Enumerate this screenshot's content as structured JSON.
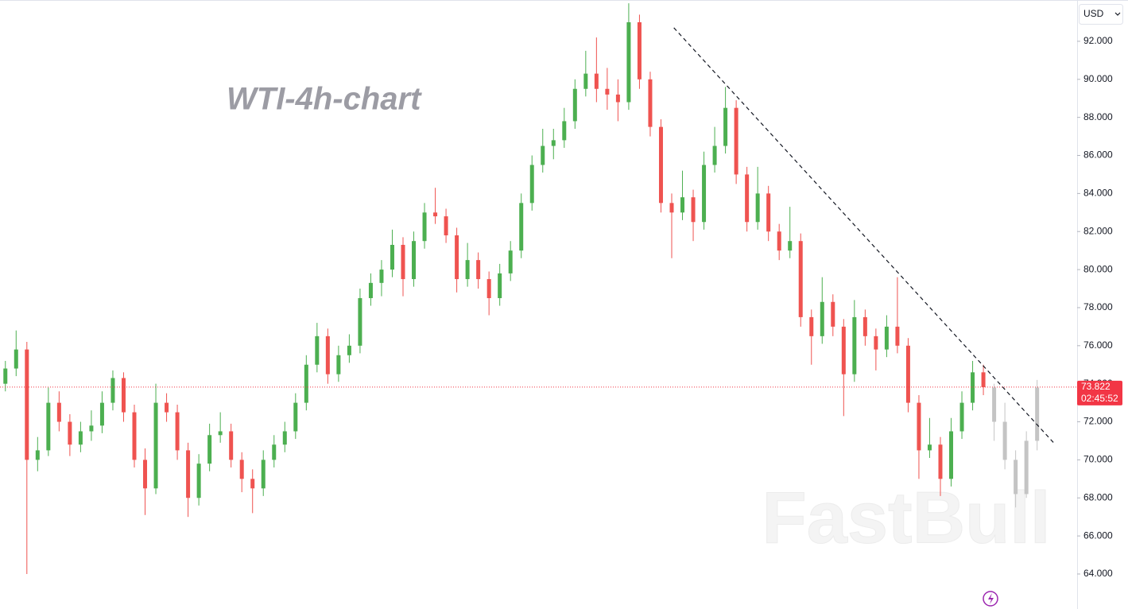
{
  "chart_data": {
    "type": "candlestick",
    "title": "WTI-4h-chart",
    "watermark": "FastBull",
    "currency": "USD",
    "last_price": 73.822,
    "countdown": "02:45:52",
    "ylim": [
      62.16,
      94.17
    ],
    "yticks": [
      {
        "value": 64,
        "label": "64.000"
      },
      {
        "value": 66,
        "label": "66.000"
      },
      {
        "value": 68,
        "label": "68.000"
      },
      {
        "value": 70,
        "label": "70.000"
      },
      {
        "value": 72,
        "label": "72.000"
      },
      {
        "value": 74,
        "label": "74.000"
      },
      {
        "value": 76,
        "label": "76.000"
      },
      {
        "value": 78,
        "label": "78.000"
      },
      {
        "value": 80,
        "label": "80.000"
      },
      {
        "value": 82,
        "label": "82.000"
      },
      {
        "value": 84,
        "label": "84.000"
      },
      {
        "value": 86,
        "label": "86.000"
      },
      {
        "value": 88,
        "label": "88.000"
      },
      {
        "value": 90,
        "label": "90.000"
      },
      {
        "value": 92,
        "label": "92.000"
      }
    ],
    "up_color": "#4caf50",
    "down_color": "#ef5350",
    "projection_color": "#c4c4c4",
    "price_line_color": "#f23645",
    "trendline": {
      "start": [
        62.2,
        92.71
      ],
      "end": [
        97.6,
        70.86
      ]
    },
    "candles": [
      [
        74.0,
        75.2,
        73.6,
        74.8
      ],
      [
        74.8,
        76.8,
        74.4,
        75.8
      ],
      [
        75.8,
        76.2,
        64.0,
        70.0
      ],
      [
        70.0,
        71.2,
        69.4,
        70.5
      ],
      [
        70.5,
        73.8,
        70.2,
        73.0
      ],
      [
        73.0,
        73.6,
        71.5,
        72.0
      ],
      [
        72.0,
        72.4,
        70.2,
        70.8
      ],
      [
        70.8,
        72.0,
        70.4,
        71.5
      ],
      [
        71.5,
        72.6,
        71.0,
        71.8
      ],
      [
        71.8,
        73.6,
        71.4,
        73.0
      ],
      [
        73.0,
        74.7,
        72.6,
        74.3
      ],
      [
        74.3,
        74.6,
        72.0,
        72.5
      ],
      [
        72.5,
        72.9,
        69.6,
        70.0
      ],
      [
        70.0,
        70.6,
        67.1,
        68.5
      ],
      [
        68.5,
        74.0,
        68.2,
        73.0
      ],
      [
        73.0,
        73.5,
        72.0,
        72.5
      ],
      [
        72.5,
        72.9,
        70.0,
        70.5
      ],
      [
        70.5,
        70.9,
        67.0,
        68.0
      ],
      [
        68.0,
        70.3,
        67.6,
        69.8
      ],
      [
        69.8,
        71.9,
        69.4,
        71.3
      ],
      [
        71.3,
        72.5,
        70.9,
        71.5
      ],
      [
        71.5,
        71.9,
        69.6,
        70.0
      ],
      [
        70.0,
        70.4,
        68.3,
        69.0
      ],
      [
        69.0,
        69.5,
        67.2,
        68.5
      ],
      [
        68.5,
        70.5,
        68.1,
        70.0
      ],
      [
        70.0,
        71.3,
        69.6,
        70.8
      ],
      [
        70.8,
        72.0,
        70.4,
        71.5
      ],
      [
        71.5,
        73.5,
        71.1,
        73.0
      ],
      [
        73.0,
        75.5,
        72.6,
        75.0
      ],
      [
        75.0,
        77.2,
        74.6,
        76.5
      ],
      [
        76.5,
        76.9,
        74.0,
        74.5
      ],
      [
        74.5,
        76.0,
        74.1,
        75.5
      ],
      [
        75.5,
        76.6,
        75.1,
        76.0
      ],
      [
        76.0,
        79.0,
        75.6,
        78.5
      ],
      [
        78.5,
        79.8,
        78.1,
        79.3
      ],
      [
        79.3,
        80.5,
        78.6,
        80.0
      ],
      [
        80.0,
        82.1,
        79.6,
        81.3
      ],
      [
        81.3,
        81.7,
        78.6,
        79.5
      ],
      [
        79.5,
        82.0,
        79.1,
        81.5
      ],
      [
        81.5,
        83.5,
        81.1,
        83.0
      ],
      [
        83.0,
        84.3,
        82.4,
        82.8
      ],
      [
        82.8,
        83.2,
        81.4,
        81.8
      ],
      [
        81.8,
        82.2,
        78.8,
        79.5
      ],
      [
        79.5,
        81.4,
        79.1,
        80.5
      ],
      [
        80.5,
        80.9,
        79.0,
        79.5
      ],
      [
        79.5,
        79.9,
        77.6,
        78.5
      ],
      [
        78.5,
        80.3,
        78.1,
        79.8
      ],
      [
        79.8,
        81.5,
        79.4,
        81.0
      ],
      [
        81.0,
        84.0,
        80.6,
        83.5
      ],
      [
        83.5,
        86.0,
        83.1,
        85.5
      ],
      [
        85.5,
        87.4,
        85.1,
        86.5
      ],
      [
        86.5,
        87.4,
        85.8,
        86.8
      ],
      [
        86.8,
        88.5,
        86.4,
        87.8
      ],
      [
        87.8,
        90.0,
        87.4,
        89.5
      ],
      [
        89.5,
        91.5,
        89.1,
        90.3
      ],
      [
        90.3,
        92.2,
        88.8,
        89.5
      ],
      [
        89.5,
        90.6,
        88.4,
        89.2
      ],
      [
        89.2,
        90.0,
        87.8,
        88.8
      ],
      [
        88.8,
        94.0,
        88.4,
        93.0
      ],
      [
        93.0,
        93.4,
        89.5,
        90.0
      ],
      [
        90.0,
        90.4,
        87.0,
        87.5
      ],
      [
        87.5,
        87.9,
        83.0,
        83.5
      ],
      [
        83.5,
        84.0,
        80.6,
        83.0
      ],
      [
        83.0,
        85.2,
        82.6,
        83.8
      ],
      [
        83.8,
        84.2,
        81.5,
        82.5
      ],
      [
        82.5,
        86.2,
        82.1,
        85.5
      ],
      [
        85.5,
        87.5,
        85.1,
        86.5
      ],
      [
        86.5,
        89.6,
        86.1,
        88.5
      ],
      [
        88.5,
        88.9,
        84.5,
        85.0
      ],
      [
        85.0,
        85.4,
        82.0,
        82.5
      ],
      [
        82.5,
        85.4,
        82.1,
        84.0
      ],
      [
        84.0,
        84.4,
        81.5,
        82.0
      ],
      [
        82.0,
        82.4,
        80.5,
        81.0
      ],
      [
        81.0,
        83.3,
        80.6,
        81.5
      ],
      [
        81.5,
        81.9,
        77.0,
        77.5
      ],
      [
        77.5,
        77.9,
        75.0,
        76.5
      ],
      [
        76.5,
        79.6,
        76.1,
        78.3
      ],
      [
        78.3,
        78.7,
        76.5,
        77.0
      ],
      [
        77.0,
        77.4,
        72.3,
        74.5
      ],
      [
        74.5,
        78.4,
        74.1,
        77.5
      ],
      [
        77.5,
        77.9,
        76.0,
        76.5
      ],
      [
        76.5,
        76.9,
        74.7,
        75.8
      ],
      [
        75.8,
        77.6,
        75.4,
        77.0
      ],
      [
        77.0,
        79.6,
        75.6,
        76.0
      ],
      [
        76.0,
        76.4,
        72.5,
        73.0
      ],
      [
        73.0,
        73.4,
        69.0,
        70.5
      ],
      [
        70.5,
        72.2,
        70.1,
        70.8
      ],
      [
        70.8,
        71.2,
        68.1,
        69.0
      ],
      [
        69.0,
        72.2,
        68.6,
        71.5
      ],
      [
        71.5,
        73.6,
        71.1,
        73.0
      ],
      [
        73.0,
        75.2,
        72.6,
        74.6
      ],
      [
        74.6,
        75.0,
        73.4,
        73.822
      ]
    ],
    "projection": [
      [
        73.8,
        74.0,
        71.0,
        72.0
      ],
      [
        72.0,
        73.0,
        69.5,
        70.0
      ],
      [
        70.0,
        70.5,
        67.5,
        68.2
      ],
      [
        68.2,
        71.5,
        68.0,
        71.0
      ],
      [
        71.0,
        74.2,
        70.5,
        73.8
      ]
    ]
  }
}
